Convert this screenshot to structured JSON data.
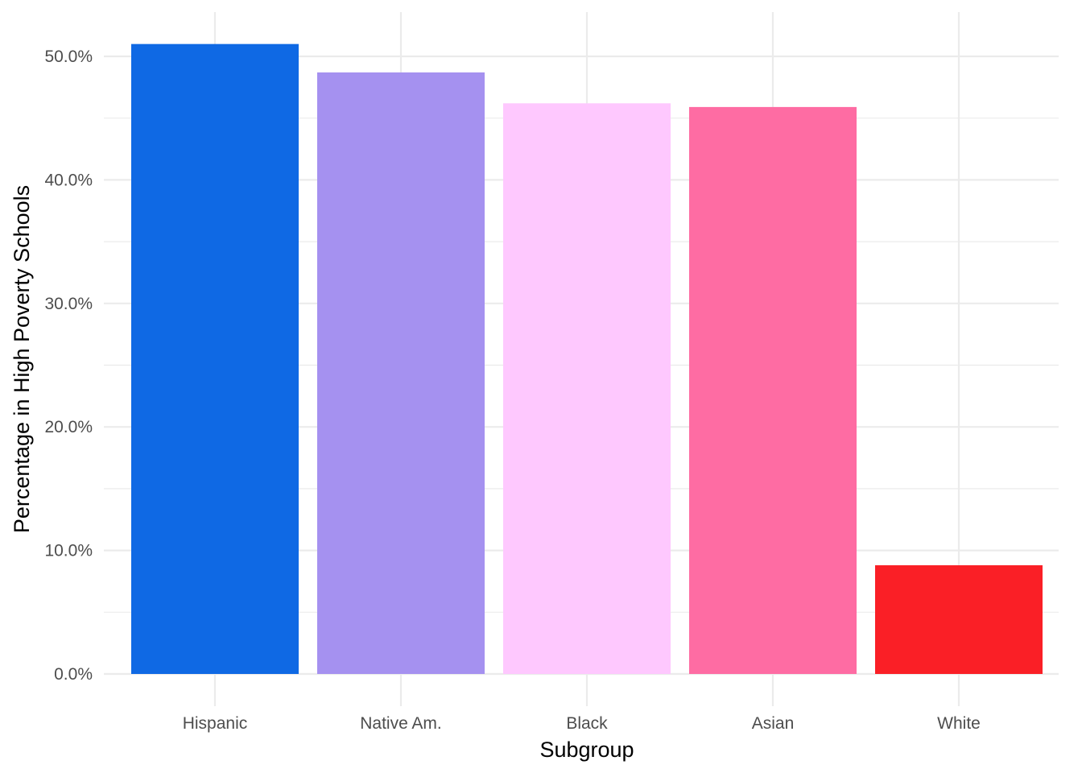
{
  "chart_data": {
    "type": "bar",
    "title": "",
    "xlabel": "Subgroup",
    "ylabel": "Percentage in High Poverty Schools",
    "categories": [
      "Hispanic",
      "Native Am.",
      "Black",
      "Asian",
      "White"
    ],
    "values": [
      51.0,
      48.7,
      46.2,
      45.9,
      8.8
    ],
    "colors": [
      "#0f69e4",
      "#a591f0",
      "#fec8fe",
      "#fe6ca3",
      "#fa1f26"
    ],
    "yticks": [
      0,
      10,
      20,
      30,
      40,
      50
    ],
    "ytick_labels": [
      "0.0%",
      "10.0%",
      "20.0%",
      "30.0%",
      "40.0%",
      "50.0%"
    ],
    "ylim": [
      0,
      52
    ],
    "grid": true,
    "legend": "none"
  }
}
